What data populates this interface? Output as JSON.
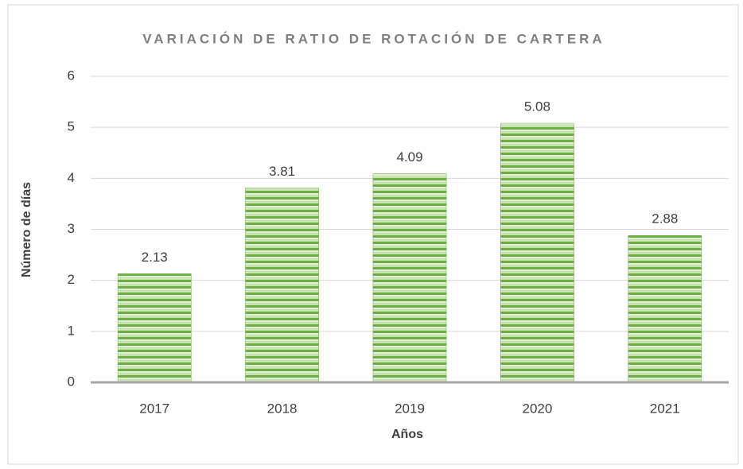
{
  "chart_data": {
    "type": "bar",
    "title": "VARIACIÓN DE RATIO DE ROTACIÓN DE CARTERA",
    "x_label": "Años",
    "y_label": "Número de días",
    "categories": [
      "2017",
      "2018",
      "2019",
      "2020",
      "2021"
    ],
    "values": [
      2.13,
      3.81,
      4.09,
      5.08,
      2.88
    ],
    "color": "#70ad47",
    "ylim": [
      0,
      6
    ],
    "yticks": [
      0,
      1,
      2,
      3,
      4,
      5,
      6
    ],
    "grid": true
  }
}
